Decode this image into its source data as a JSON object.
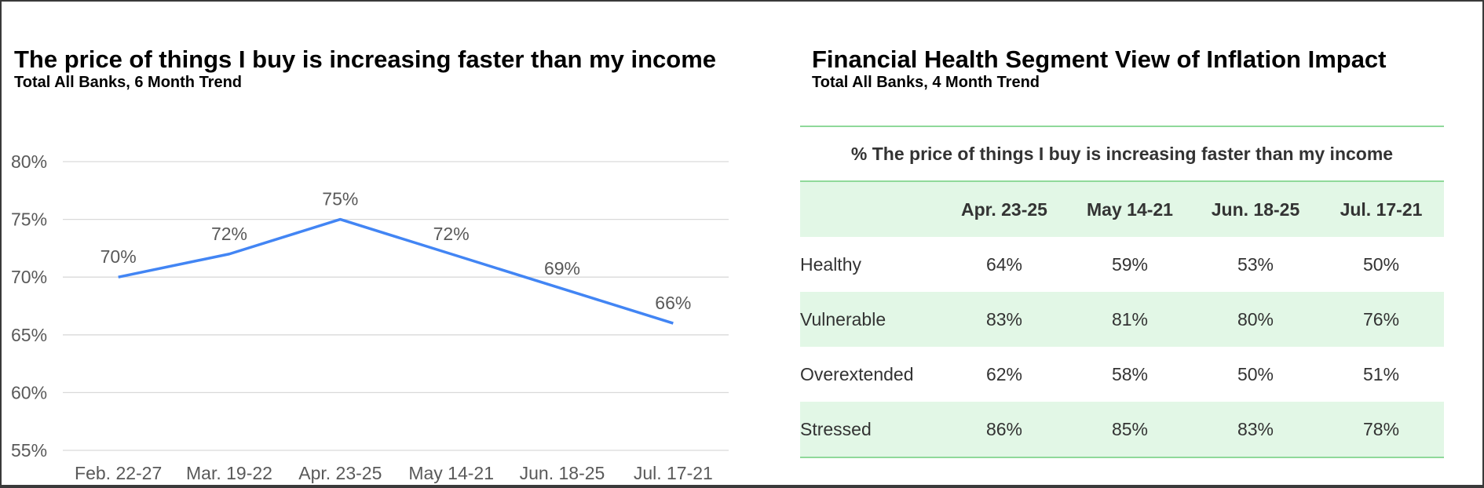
{
  "chart_data": [
    {
      "type": "line",
      "title": "The price of things I buy is increasing faster than my income",
      "subtitle": "Total All Banks, 6 Month Trend",
      "categories": [
        "Feb. 22-27",
        "Mar. 19-22",
        "Apr. 23-25",
        "May 14-21",
        "Jun. 18-25",
        "Jul. 17-21"
      ],
      "series": [
        {
          "values": [
            70,
            72,
            75,
            72,
            69,
            66
          ],
          "data_labels": [
            "70%",
            "72%",
            "75%",
            "72%",
            "69%",
            "66%"
          ],
          "color": "#4285f4"
        }
      ],
      "yticks": [
        55,
        60,
        65,
        70,
        75,
        80
      ],
      "ytick_labels": [
        "55%",
        "60%",
        "65%",
        "70%",
        "75%",
        "80%"
      ],
      "ylim": [
        55,
        80
      ],
      "grid": true,
      "legend": "none"
    },
    {
      "type": "table",
      "title": "Financial Health Segment View of Inflation Impact",
      "subtitle": "Total All Banks, 4 Month Trend",
      "caption": "% The price of things I buy is increasing faster than my income",
      "columns": [
        "",
        "Apr. 23-25",
        "May 14-21",
        "Jun. 18-25",
        "Jul. 17-21"
      ],
      "rows": [
        {
          "segment": "Healthy",
          "values": [
            "64%",
            "59%",
            "53%",
            "50%"
          ]
        },
        {
          "segment": "Vulnerable",
          "values": [
            "83%",
            "81%",
            "80%",
            "76%"
          ]
        },
        {
          "segment": "Overextended",
          "values": [
            "62%",
            "58%",
            "50%",
            "51%"
          ]
        },
        {
          "segment": "Stressed",
          "values": [
            "86%",
            "85%",
            "83%",
            "78%"
          ]
        }
      ],
      "colors": {
        "shade": "#e2f7e6",
        "rule": "#8fd99a"
      }
    }
  ]
}
